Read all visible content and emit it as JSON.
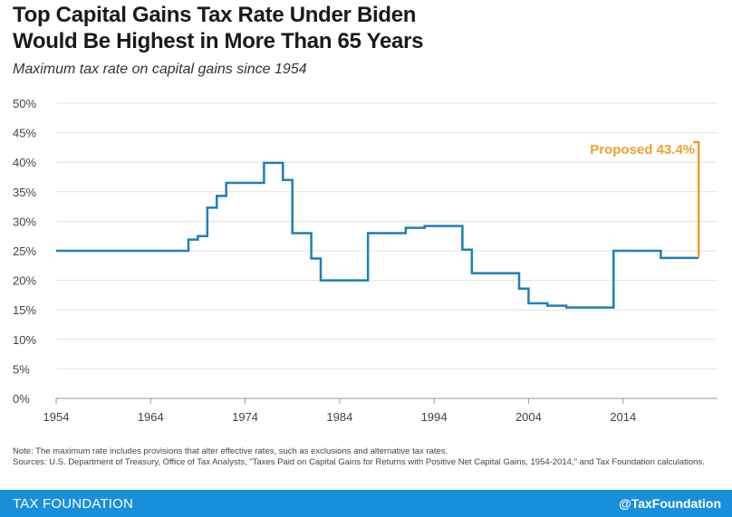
{
  "header": {
    "title_line1": "Top Capital Gains Tax Rate Under Biden",
    "title_line2": "Would Be Highest in More Than 65 Years",
    "subtitle": "Maximum tax rate on capital gains since 1954"
  },
  "chart_data": {
    "type": "line",
    "step": true,
    "title": "Top Capital Gains Tax Rate Under Biden Would Be Highest in More Than 65 Years",
    "subtitle": "Maximum tax rate on capital gains since 1954",
    "xlabel": "",
    "ylabel": "",
    "xlim": [
      1954,
      2024
    ],
    "ylim": [
      0,
      50
    ],
    "x_ticks": [
      1954,
      1964,
      1974,
      1984,
      1994,
      2004,
      2014
    ],
    "y_ticks": [
      0,
      5,
      10,
      15,
      20,
      25,
      30,
      35,
      40,
      45,
      50
    ],
    "y_tick_labels": [
      "0%",
      "5%",
      "10%",
      "15%",
      "20%",
      "25%",
      "30%",
      "35%",
      "40%",
      "45%",
      "50%"
    ],
    "grid": true,
    "line_color": "#1f7fb6",
    "proposed_color": "#f0a030",
    "series": [
      {
        "name": "",
        "x": [
          1954,
          1968,
          1969,
          1970,
          1971,
          1972,
          1976,
          1978,
          1979,
          1981,
          1982,
          1987,
          1991,
          1993,
          1997,
          1998,
          2003,
          2004,
          2006,
          2008,
          2013,
          2018,
          2022
        ],
        "y": [
          25.0,
          26.9,
          27.5,
          32.3,
          34.3,
          36.5,
          39.9,
          37.0,
          28.0,
          23.7,
          20.0,
          28.0,
          28.9,
          29.2,
          25.2,
          21.2,
          18.6,
          16.1,
          15.7,
          15.4,
          25.0,
          23.8,
          23.8
        ]
      }
    ],
    "proposed": {
      "label": "Proposed 43.4%",
      "x": 2022,
      "from": 23.8,
      "to": 43.4
    }
  },
  "note_text": "Note: The maximum rate includes provisions that alter effective rates, such as exclusions and alternative tax rates.",
  "sources_text": "Sources: U.S. Department of Treasury, Office of Tax Analysts, \"Taxes Paid on Capital Gains for Returns with Positive Net Capital Gains, 1954-2014,\" and Tax Foundation calculations.",
  "footer": {
    "brand": "TAX FOUNDATION",
    "handle": "@TaxFoundation"
  }
}
